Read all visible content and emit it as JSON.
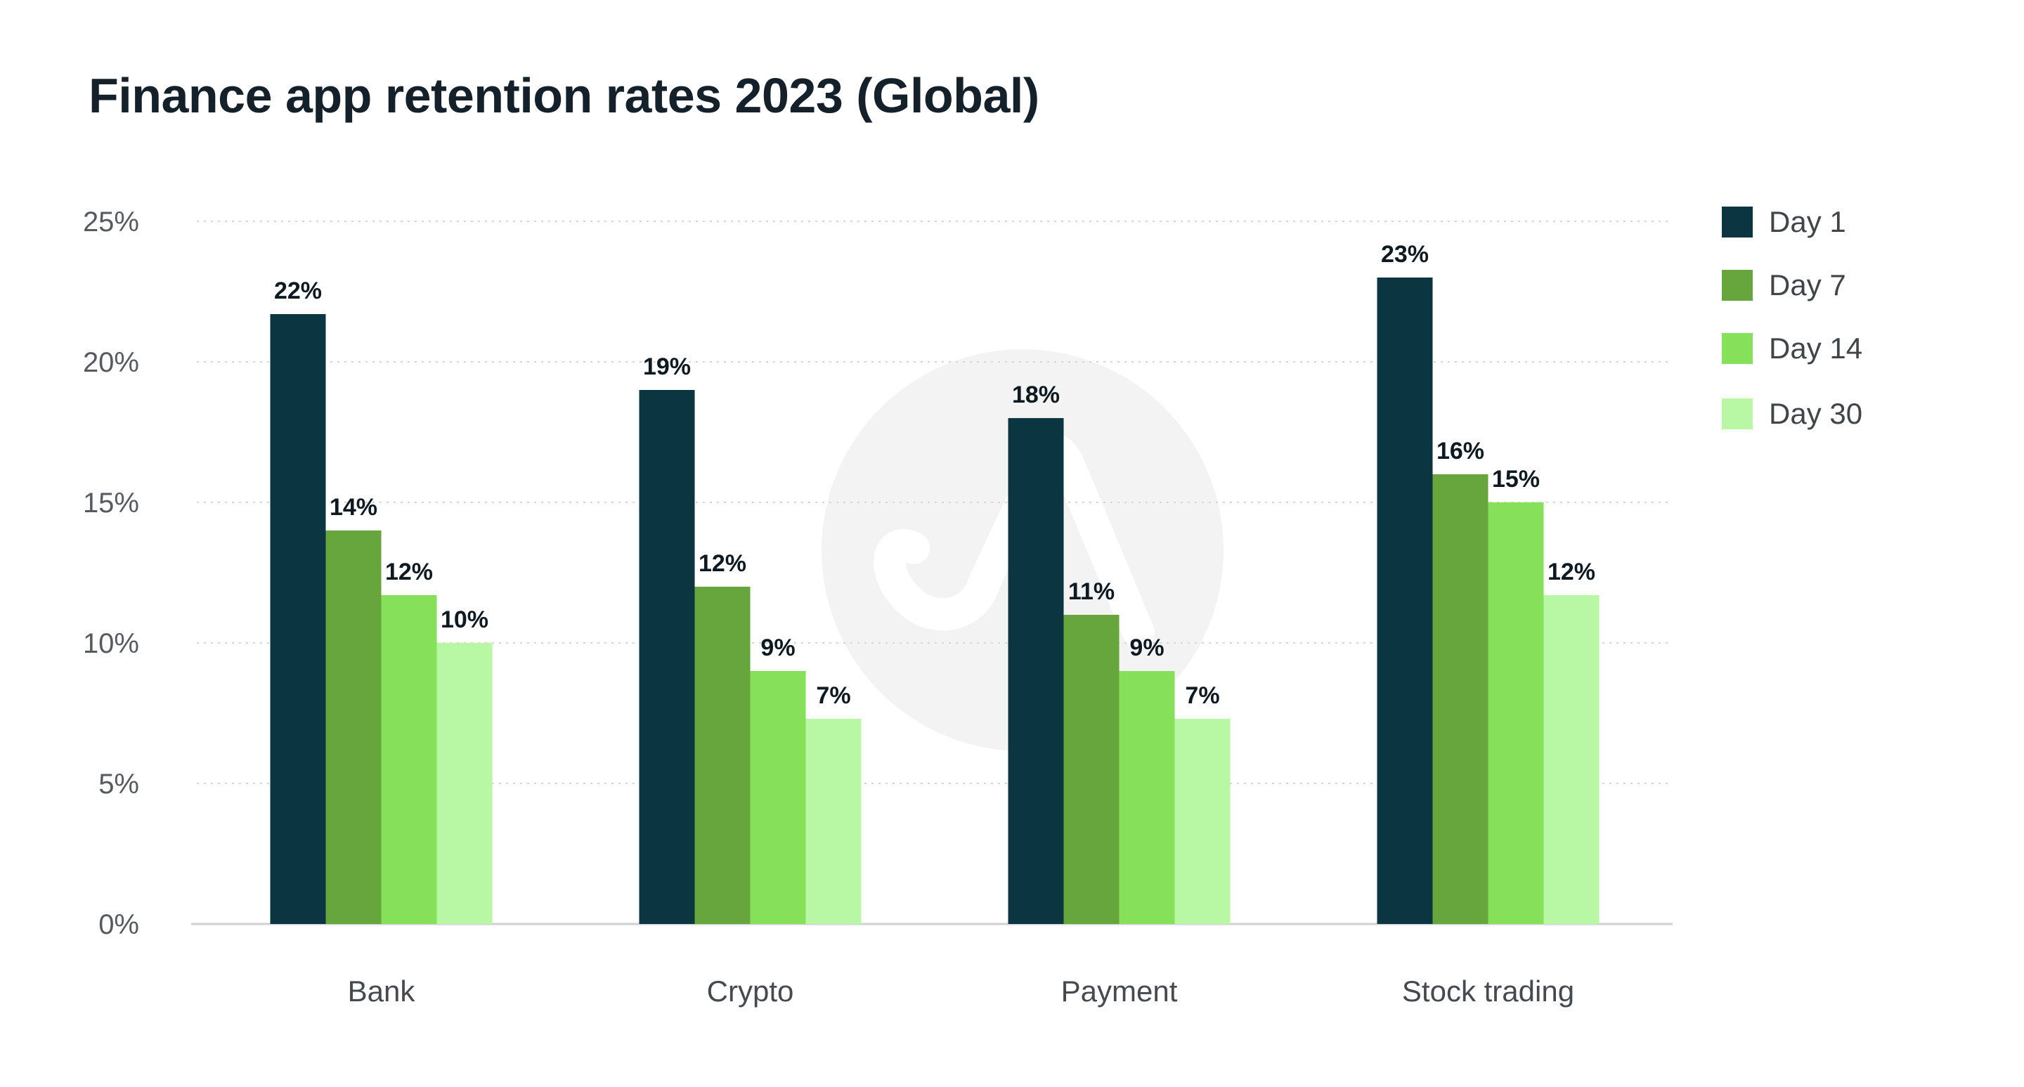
{
  "chart_data": {
    "type": "bar",
    "title": "Finance app retention rates 2023 (Global)",
    "categories": [
      "Bank",
      "Crypto",
      "Payment",
      "Stock trading"
    ],
    "series": [
      {
        "name": "Day 1",
        "color": "#0b3540",
        "values": [
          21.7,
          19.0,
          18.0,
          23.0
        ],
        "labels": [
          "22%",
          "19%",
          "18%",
          "23%"
        ]
      },
      {
        "name": "Day 7",
        "color": "#66a63c",
        "values": [
          14.0,
          12.0,
          11.0,
          16.0
        ],
        "labels": [
          "14%",
          "12%",
          "11%",
          "16%"
        ]
      },
      {
        "name": "Day 14",
        "color": "#86e05a",
        "values": [
          11.7,
          9.0,
          9.0,
          15.0
        ],
        "labels": [
          "12%",
          "9%",
          "9%",
          "15%"
        ]
      },
      {
        "name": "Day 30",
        "color": "#b8f7a4",
        "values": [
          10.0,
          7.3,
          7.3,
          11.7
        ],
        "labels": [
          "10%",
          "7%",
          "7%",
          "12%"
        ]
      }
    ],
    "y_ticks": [
      {
        "value": 0,
        "label": "0%"
      },
      {
        "value": 5,
        "label": "5%"
      },
      {
        "value": 10,
        "label": "10%"
      },
      {
        "value": 15,
        "label": "15%"
      },
      {
        "value": 20,
        "label": "20%"
      },
      {
        "value": 25,
        "label": "25%"
      }
    ],
    "ylim": [
      0,
      25
    ],
    "xlabel": "",
    "ylabel": "",
    "grid": true,
    "legend_position": "top-right"
  }
}
